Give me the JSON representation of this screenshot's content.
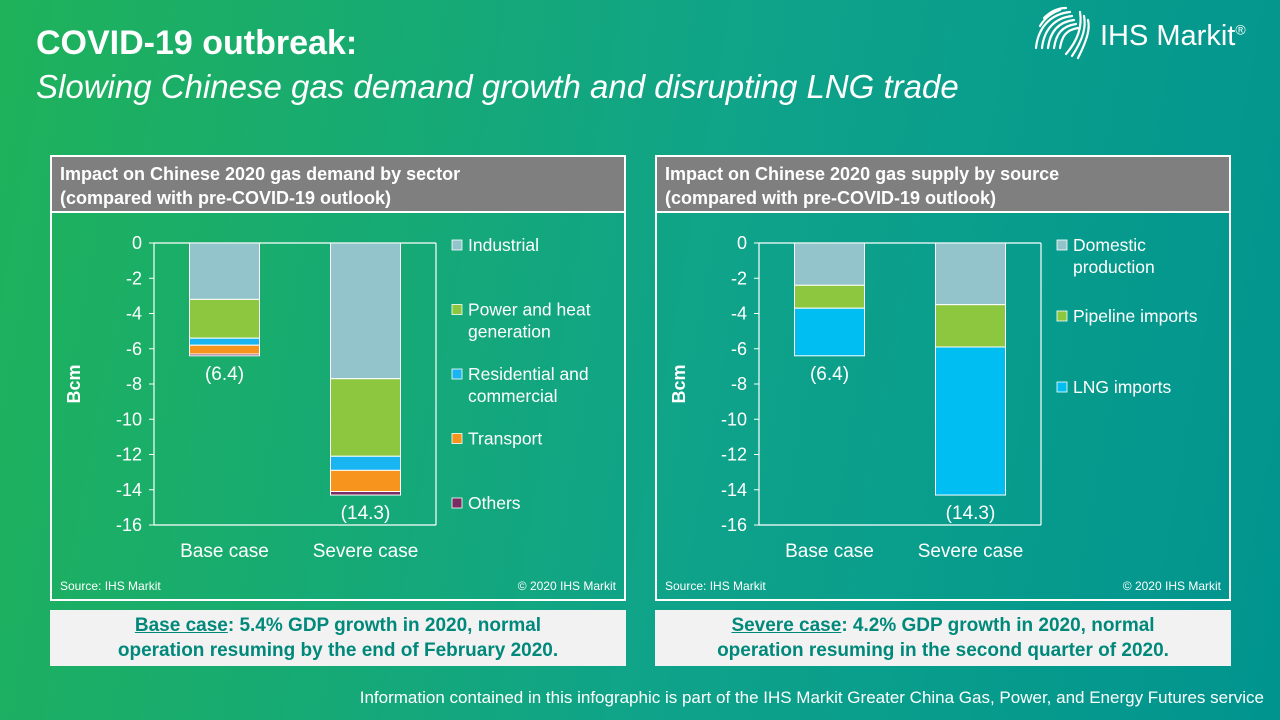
{
  "header": {
    "title": "COVID-19 outbreak:",
    "subtitle": "Slowing Chinese gas demand growth and disrupting LNG trade",
    "logo_text": "IHS Markit",
    "logo_reg": "®"
  },
  "panels": [
    {
      "title_line1": "Impact on Chinese 2020 gas demand by sector",
      "title_line2": "(compared with  pre-COVID-19  outlook)",
      "source": "Source: IHS Markit",
      "copyright": "© 2020 IHS Markit"
    },
    {
      "title_line1": "Impact on Chinese 2020 gas supply by source",
      "title_line2": "(compared with  pre-COVID-19  outlook)",
      "source": "Source: IHS Markit",
      "copyright": "© 2020 IHS Markit"
    }
  ],
  "notes": [
    {
      "case": "Base case",
      "line1": ": 5.4% GDP growth in 2020, normal",
      "line2": "operation resuming by the end of February 2020."
    },
    {
      "case": "Severe case",
      "line1": ": 4.2% GDP growth in 2020, normal",
      "line2": "operation resuming in the second quarter of 2020."
    }
  ],
  "footer": "Information contained in this infographic is part of the IHS Markit Greater China Gas, Power, and Energy Futures service",
  "chart_data": [
    {
      "type": "bar",
      "stacked": true,
      "title": "Impact on Chinese 2020 gas demand by sector (compared with pre-COVID-19 outlook)",
      "ylabel": "Bcm",
      "ylim": [
        -16,
        0
      ],
      "yticks": [
        0,
        -2,
        -4,
        -6,
        -8,
        -10,
        -12,
        -14,
        -16
      ],
      "categories": [
        "Base case",
        "Severe case"
      ],
      "totals": [
        "(6.4)",
        "(14.3)"
      ],
      "series": [
        {
          "name": "Industrial",
          "color": "#93c4cc",
          "values": [
            -3.2,
            -7.7
          ]
        },
        {
          "name": "Power and heat generation",
          "color": "#8dc63f",
          "values": [
            -2.2,
            -4.4
          ]
        },
        {
          "name": "Residential and commercial",
          "color": "#19b5f0",
          "values": [
            -0.4,
            -0.8
          ]
        },
        {
          "name": "Transport",
          "color": "#f7941d",
          "values": [
            -0.5,
            -1.2
          ]
        },
        {
          "name": "Others",
          "color": "#7b2c63",
          "values": [
            -0.1,
            -0.2
          ]
        }
      ],
      "legend_lines": [
        [
          "Industrial"
        ],
        [
          "Power and heat",
          "generation"
        ],
        [
          "Residential and",
          "commercial"
        ],
        [
          "Transport"
        ],
        [
          "Others"
        ]
      ],
      "legend": "right"
    },
    {
      "type": "bar",
      "stacked": true,
      "title": "Impact on Chinese 2020 gas supply by source (compared with pre-COVID-19 outlook)",
      "ylabel": "Bcm",
      "ylim": [
        -16,
        0
      ],
      "yticks": [
        0,
        -2,
        -4,
        -6,
        -8,
        -10,
        -12,
        -14,
        -16
      ],
      "categories": [
        "Base case",
        "Severe case"
      ],
      "totals": [
        "(6.4)",
        "(14.3)"
      ],
      "series": [
        {
          "name": "Domestic production",
          "color": "#93c4cc",
          "values": [
            -2.4,
            -3.5
          ]
        },
        {
          "name": "Pipeline imports",
          "color": "#8dc63f",
          "values": [
            -1.3,
            -2.4
          ]
        },
        {
          "name": "LNG imports",
          "color": "#00bdf2",
          "values": [
            -2.7,
            -8.4
          ]
        }
      ],
      "legend_lines": [
        [
          "Domestic",
          "production"
        ],
        [
          "Pipeline imports"
        ],
        [
          "LNG imports"
        ]
      ],
      "legend": "right"
    }
  ]
}
